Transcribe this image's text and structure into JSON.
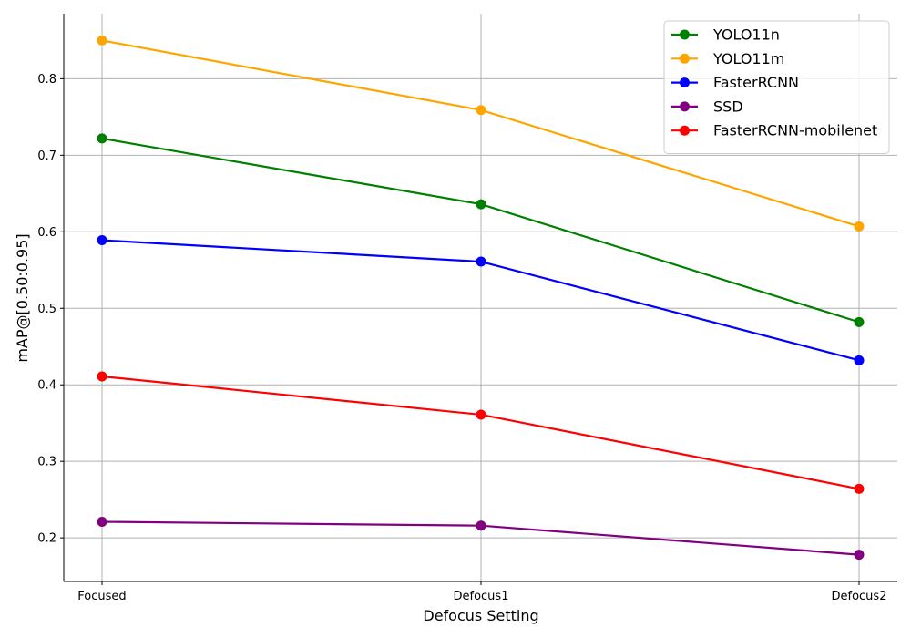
{
  "chart_data": {
    "type": "line",
    "title": "",
    "xlabel": "Defocus Setting",
    "ylabel": "mAP@[0.50:0.95]",
    "categories": [
      "Focused",
      "Defocus1",
      "Defocus2"
    ],
    "ylim": [
      0.143,
      0.885
    ],
    "yticks": [
      0.2,
      0.3,
      0.4,
      0.5,
      0.6,
      0.7,
      0.8
    ],
    "ytick_labels": [
      "0.2",
      "0.3",
      "0.4",
      "0.5",
      "0.6",
      "0.7",
      "0.8"
    ],
    "grid": true,
    "legend_position": "top-right",
    "series": [
      {
        "name": "YOLO11n",
        "color": "#008000",
        "values": [
          0.722,
          0.636,
          0.482
        ]
      },
      {
        "name": "YOLO11m",
        "color": "#FFA500",
        "values": [
          0.85,
          0.759,
          0.607
        ]
      },
      {
        "name": "FasterRCNN",
        "color": "#0000FF",
        "values": [
          0.589,
          0.561,
          0.432
        ]
      },
      {
        "name": "SSD",
        "color": "#800080",
        "values": [
          0.221,
          0.216,
          0.178
        ]
      },
      {
        "name": "FasterRCNN-mobilenet",
        "color": "#FF0000",
        "values": [
          0.411,
          0.361,
          0.264
        ]
      }
    ]
  }
}
